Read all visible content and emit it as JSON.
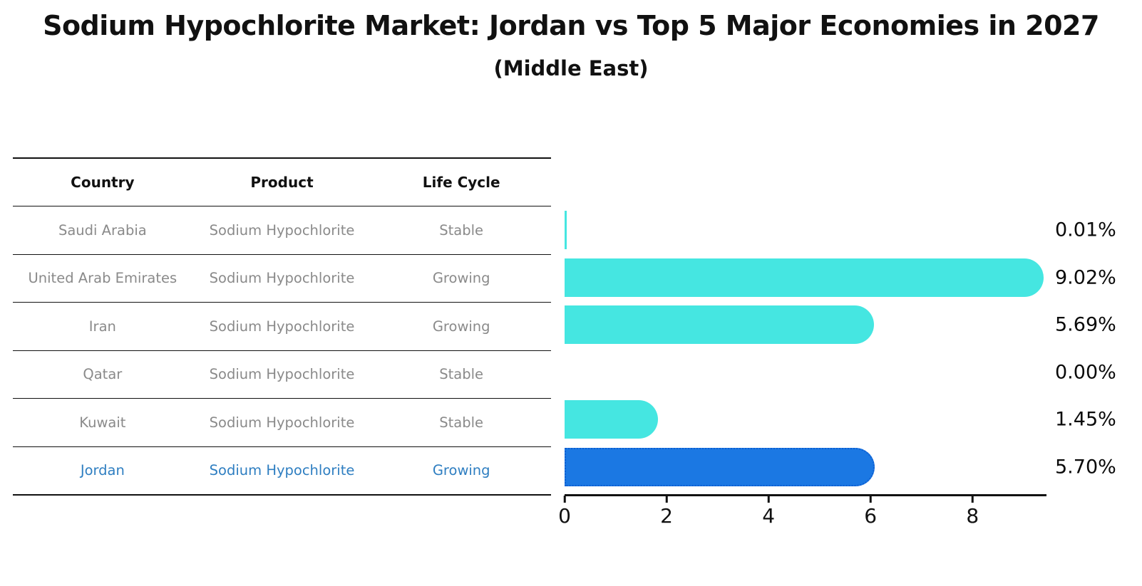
{
  "title": "Sodium Hypochlorite Market: Jordan vs Top 5 Major Economies in 2027",
  "subtitle": "(Middle East)",
  "table": {
    "headers": [
      "Country",
      "Product",
      "Life Cycle"
    ],
    "rows": [
      {
        "country": "Saudi Arabia",
        "product": "Sodium Hypochlorite",
        "life_cycle": "Stable",
        "highlight": false
      },
      {
        "country": "United Arab Emirates",
        "product": "Sodium Hypochlorite",
        "life_cycle": "Growing",
        "highlight": false
      },
      {
        "country": "Iran",
        "product": "Sodium Hypochlorite",
        "life_cycle": "Growing",
        "highlight": false
      },
      {
        "country": "Qatar",
        "product": "Sodium Hypochlorite",
        "life_cycle": "Stable",
        "highlight": false
      },
      {
        "country": "Kuwait",
        "product": "Sodium Hypochlorite",
        "life_cycle": "Stable",
        "highlight": false
      },
      {
        "country": "Jordan",
        "product": "Sodium Hypochlorite",
        "life_cycle": "Growing",
        "highlight": true
      }
    ]
  },
  "chart_data": {
    "type": "bar",
    "orientation": "horizontal",
    "title": "Sodium Hypochlorite Market: Jordan vs Top 5 Major Economies in 2027",
    "subtitle": "(Middle East)",
    "categories": [
      "Saudi Arabia",
      "United Arab Emirates",
      "Iran",
      "Qatar",
      "Kuwait",
      "Jordan"
    ],
    "values": [
      0.01,
      9.02,
      5.69,
      0.0,
      1.45,
      5.7
    ],
    "value_labels": [
      "0.01%",
      "9.02%",
      "5.69%",
      "0.00%",
      "1.45%",
      "5.70%"
    ],
    "unit": "%",
    "xlabel": "",
    "ylabel": "",
    "xlim": [
      0,
      9.45
    ],
    "x_ticks": [
      "0",
      "2",
      "4",
      "6",
      "8"
    ],
    "x_tick_values": [
      0,
      2,
      4,
      6,
      8
    ],
    "grid": false,
    "legend": false,
    "highlight_index": 5
  },
  "colors": {
    "bar_color": "#45E6E1",
    "highlight_bar_color": "#1B78E3",
    "highlight_bar_border": "#0d5ed2",
    "highlight_text": "#2E7EC1",
    "table_text": "#8a8a8a",
    "header_text": "#111111",
    "axis_color": "#111111"
  }
}
